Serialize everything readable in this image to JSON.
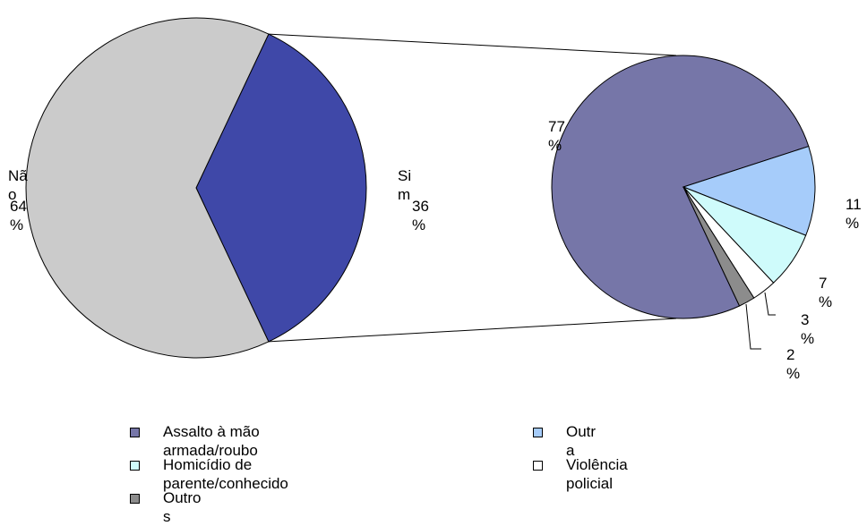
{
  "chart_data": [
    {
      "type": "pie",
      "slices": [
        {
          "label": "Sim",
          "value": 36,
          "display": "Si\nm",
          "pct": "36\n%",
          "color": "#3F48A8"
        },
        {
          "label": "Não",
          "value": 64,
          "display": "Nã\no",
          "pct": "64\n%",
          "color": "#CBCBCB"
        }
      ]
    },
    {
      "type": "pie",
      "slices": [
        {
          "label": "Assalto à mão armada/roubo",
          "value": 77,
          "pct": "77\n%",
          "color": "#7676A8"
        },
        {
          "label": "Outra",
          "value": 11,
          "pct": "11\n%",
          "color": "#A6CCFA"
        },
        {
          "label": "Homicídio de parente/conhecido",
          "value": 7,
          "pct": "7\n%",
          "color": "#CFFBFB"
        },
        {
          "label": "Violência policial",
          "value": 3,
          "pct": "3\n%",
          "color": "#FFFFFF"
        },
        {
          "label": "Outros",
          "value": 2,
          "pct": "2\n%",
          "color": "#8C8C8C"
        }
      ]
    }
  ],
  "legend": [
    {
      "text": "Assalto à mão\narmada/roubo",
      "color": "#7676A8"
    },
    {
      "text": "Outr\na",
      "color": "#A6CCFA"
    },
    {
      "text": "Homicídio de\nparente/conhecido",
      "color": "#CFFBFB"
    },
    {
      "text": "Violência\npolicial",
      "color": "#FFFFFF"
    },
    {
      "text": "Outro\ns",
      "color": "#8C8C8C"
    }
  ]
}
